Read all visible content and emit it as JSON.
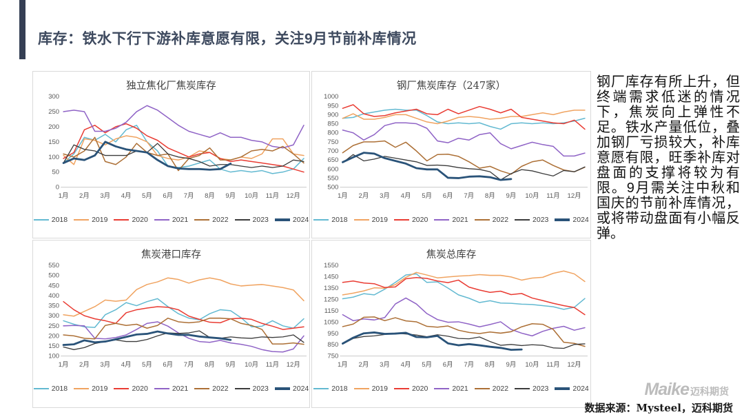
{
  "page": {
    "title": "库存：铁水下行下游补库意愿有限，关注9月节前补库情况",
    "commentary": "钢厂库存有所上升，但终端需求低迷的情况下，焦炭向上弹性不足。铁水产量低位，叠加钢厂亏损较大，补库意愿有限，旺季补库对盘面的支撑将较为有限。9月需关注中秋和国庆的节前补库情况，或将带动盘面有小幅反弹。",
    "source": "数据来源：Mysteel，迈科期货",
    "watermark_main": "Maike",
    "watermark_sub": "迈科期货"
  },
  "colors": {
    "2018": "#62b9d1",
    "2019": "#f0a360",
    "2020": "#e93b32",
    "2021": "#8f63c6",
    "2022": "#ac6f35",
    "2023": "#3b3b3b",
    "2024": "#2a5379",
    "accent": "#353f54",
    "axis_text": "#595959",
    "panel_border": "#d9d9d9"
  },
  "chart_data": [
    {
      "type": "line",
      "title": "独立焦化厂焦炭库存",
      "ylim": [
        0,
        300
      ],
      "yticks": [
        0,
        50,
        100,
        150,
        200,
        250,
        300
      ],
      "x_labels": [
        "1月",
        "2月",
        "3月",
        "4月",
        "5月",
        "6月",
        "7月",
        "8月",
        "9月",
        "10月",
        "11月",
        "12月"
      ],
      "legend_position": "bottom",
      "grid": false,
      "series": [
        {
          "name": "2018",
          "values": [
            80,
            110,
            165,
            155,
            175,
            150,
            190,
            205,
            150,
            120,
            70,
            65,
            70,
            80,
            90,
            60,
            50,
            55,
            50,
            55,
            45,
            50,
            60,
            95
          ]
        },
        {
          "name": "2019",
          "values": [
            105,
            75,
            160,
            155,
            140,
            160,
            170,
            165,
            150,
            105,
            95,
            90,
            100,
            120,
            115,
            95,
            90,
            100,
            95,
            110,
            160,
            160,
            110,
            105
          ]
        },
        {
          "name": "2020",
          "values": [
            95,
            115,
            190,
            205,
            180,
            200,
            210,
            195,
            170,
            155,
            130,
            115,
            100,
            110,
            115,
            95,
            85,
            90,
            85,
            80,
            75,
            70,
            60,
            50
          ]
        },
        {
          "name": "2021",
          "values": [
            250,
            255,
            250,
            185,
            185,
            195,
            215,
            250,
            270,
            255,
            230,
            205,
            185,
            175,
            165,
            180,
            165,
            165,
            155,
            150,
            135,
            130,
            140,
            205
          ]
        },
        {
          "name": "2022",
          "values": [
            110,
            100,
            120,
            165,
            85,
            75,
            100,
            145,
            115,
            105,
            110,
            55,
            95,
            105,
            130,
            90,
            90,
            100,
            120,
            125,
            120,
            135,
            110,
            80
          ]
        },
        {
          "name": "2023",
          "values": [
            80,
            140,
            125,
            120,
            105,
            105,
            105,
            120,
            115,
            145,
            110,
            100,
            95,
            85,
            70,
            75,
            75,
            70,
            65,
            70,
            65,
            70,
            90,
            85
          ]
        },
        {
          "name": "2024",
          "values": [
            80,
            95,
            90,
            105,
            150,
            135,
            125,
            120,
            115,
            90,
            70,
            62,
            60,
            60,
            58,
            60,
            78
          ]
        }
      ]
    },
    {
      "type": "line",
      "title": "钢厂焦炭库存（247家）",
      "ylim": [
        500,
        1000
      ],
      "yticks": [
        500,
        550,
        600,
        650,
        700,
        750,
        800,
        850,
        900,
        950,
        1000
      ],
      "x_labels": [
        "1月",
        "2月",
        "3月",
        "4月",
        "5月",
        "6月",
        "7月",
        "8月",
        "9月",
        "10月",
        "11月",
        "12月"
      ],
      "legend_position": "bottom",
      "grid": false,
      "series": [
        {
          "name": "2018",
          "values": [
            880,
            885,
            905,
            915,
            925,
            930,
            925,
            925,
            895,
            860,
            850,
            855,
            850,
            855,
            835,
            820,
            850,
            855,
            850,
            855,
            850,
            855,
            865,
            880
          ]
        },
        {
          "name": "2019",
          "values": [
            880,
            905,
            875,
            875,
            885,
            900,
            900,
            880,
            860,
            850,
            865,
            885,
            890,
            885,
            875,
            880,
            890,
            890,
            900,
            910,
            900,
            915,
            925,
            925
          ]
        },
        {
          "name": "2020",
          "values": [
            935,
            955,
            905,
            890,
            895,
            910,
            920,
            930,
            905,
            900,
            930,
            905,
            925,
            945,
            930,
            910,
            930,
            885,
            875,
            865,
            855,
            850,
            870,
            820
          ]
        },
        {
          "name": "2021",
          "values": [
            815,
            800,
            760,
            790,
            840,
            855,
            855,
            850,
            825,
            755,
            745,
            770,
            760,
            790,
            800,
            740,
            712,
            730,
            748,
            735,
            725,
            672,
            672,
            688
          ]
        },
        {
          "name": "2022",
          "values": [
            690,
            730,
            750,
            750,
            755,
            720,
            748,
            700,
            645,
            680,
            682,
            670,
            640,
            605,
            615,
            590,
            572,
            615,
            640,
            650,
            620,
            595,
            585,
            610
          ]
        },
        {
          "name": "2023",
          "values": [
            635,
            680,
            645,
            655,
            670,
            660,
            650,
            640,
            620,
            622,
            618,
            608,
            602,
            598,
            585,
            540,
            575,
            597,
            590,
            575,
            562,
            592,
            585,
            612
          ]
        },
        {
          "name": "2024",
          "values": [
            638,
            665,
            690,
            685,
            660,
            645,
            630,
            605,
            598,
            598,
            552,
            550,
            558,
            560,
            555,
            540,
            545
          ]
        }
      ]
    },
    {
      "type": "line",
      "title": "焦炭港口库存",
      "ylim": [
        100,
        550
      ],
      "yticks": [
        100,
        150,
        200,
        250,
        300,
        350,
        400,
        450,
        500,
        550
      ],
      "x_labels": [
        "1月",
        "2月",
        "3月",
        "4月",
        "5月",
        "6月",
        "7月",
        "8月",
        "9月",
        "10月",
        "11月",
        "12月"
      ],
      "legend_position": "bottom",
      "grid": false,
      "series": [
        {
          "name": "2018",
          "values": [
            275,
            258,
            245,
            242,
            305,
            330,
            365,
            350,
            370,
            385,
            345,
            310,
            288,
            280,
            310,
            330,
            325,
            290,
            245,
            248,
            275,
            250,
            238,
            285
          ]
        },
        {
          "name": "2019",
          "values": [
            305,
            298,
            322,
            345,
            378,
            372,
            378,
            430,
            455,
            468,
            488,
            480,
            462,
            478,
            488,
            478,
            458,
            448,
            452,
            455,
            448,
            440,
            428,
            375
          ]
        },
        {
          "name": "2020",
          "values": [
            370,
            330,
            300,
            285,
            275,
            262,
            315,
            330,
            338,
            345,
            342,
            330,
            298,
            282,
            268,
            265,
            285,
            288,
            282,
            262,
            248,
            232,
            238,
            245
          ]
        },
        {
          "name": "2021",
          "values": [
            250,
            252,
            250,
            188,
            185,
            192,
            205,
            232,
            262,
            270,
            248,
            215,
            188,
            172,
            168,
            178,
            165,
            158,
            148,
            132,
            122,
            120,
            135,
            200
          ]
        },
        {
          "name": "2022",
          "values": [
            205,
            200,
            188,
            185,
            252,
            262,
            252,
            258,
            238,
            252,
            288,
            270,
            265,
            270,
            288,
            288,
            285,
            262,
            252,
            232,
            160,
            160,
            165,
            158
          ]
        },
        {
          "name": "2023",
          "values": [
            145,
            132,
            142,
            162,
            172,
            180,
            172,
            172,
            182,
            200,
            215,
            212,
            215,
            225,
            192,
            188,
            195,
            190,
            188,
            195,
            192,
            195,
            205,
            168
          ]
        },
        {
          "name": "2024",
          "values": [
            155,
            158,
            178,
            168,
            172,
            183,
            195,
            207,
            210,
            222,
            212,
            205,
            205,
            197,
            192,
            188,
            180
          ]
        }
      ]
    },
    {
      "type": "line",
      "title": "焦炭总库存",
      "ylim": [
        750,
        1550
      ],
      "yticks": [
        750,
        850,
        950,
        1050,
        1150,
        1250,
        1350,
        1450,
        1550
      ],
      "x_labels": [
        "1月",
        "2月",
        "3月",
        "4月",
        "5月",
        "6月",
        "7月",
        "8月",
        "9月",
        "10月",
        "11月",
        "12月"
      ],
      "legend_position": "bottom",
      "grid": false,
      "series": [
        {
          "name": "2018",
          "values": [
            1255,
            1270,
            1300,
            1290,
            1340,
            1400,
            1465,
            1475,
            1400,
            1405,
            1350,
            1290,
            1260,
            1222,
            1238,
            1218,
            1215,
            1208,
            1205,
            1195,
            1185,
            1162,
            1180,
            1258
          ]
        },
        {
          "name": "2019",
          "values": [
            1290,
            1305,
            1325,
            1352,
            1348,
            1380,
            1445,
            1488,
            1465,
            1440,
            1448,
            1455,
            1460,
            1468,
            1462,
            1462,
            1448,
            1420,
            1438,
            1445,
            1480,
            1500,
            1475,
            1408
          ]
        },
        {
          "name": "2020",
          "values": [
            1400,
            1412,
            1395,
            1388,
            1355,
            1360,
            1432,
            1442,
            1435,
            1412,
            1398,
            1420,
            1358,
            1332,
            1312,
            1322,
            1292,
            1302,
            1262,
            1240,
            1215,
            1195,
            1178,
            1115
          ]
        },
        {
          "name": "2021",
          "values": [
            1115,
            1062,
            1078,
            1068,
            1090,
            1210,
            1262,
            1210,
            1125,
            1072,
            1048,
            1052,
            1032,
            1008,
            1028,
            1052,
            985,
            952,
            928,
            968,
            995,
            1012,
            978,
            1000
          ]
        },
        {
          "name": "2022",
          "values": [
            1010,
            1032,
            1092,
            1095,
            1062,
            1088,
            1060,
            1052,
            1012,
            1005,
            1015,
            978,
            958,
            948,
            962,
            952,
            965,
            1008,
            1035,
            1030,
            985,
            872,
            862,
            835
          ]
        },
        {
          "name": "2023",
          "values": [
            855,
            905,
            922,
            928,
            940,
            952,
            945,
            935,
            920,
            938,
            925,
            905,
            902,
            918,
            878,
            845,
            852,
            842,
            850,
            845,
            822,
            818,
            852,
            858
          ]
        },
        {
          "name": "2024",
          "values": [
            860,
            912,
            950,
            958,
            945,
            948,
            955,
            918,
            915,
            928,
            862,
            845,
            855,
            845,
            832,
            822,
            805,
            808
          ]
        }
      ]
    }
  ]
}
